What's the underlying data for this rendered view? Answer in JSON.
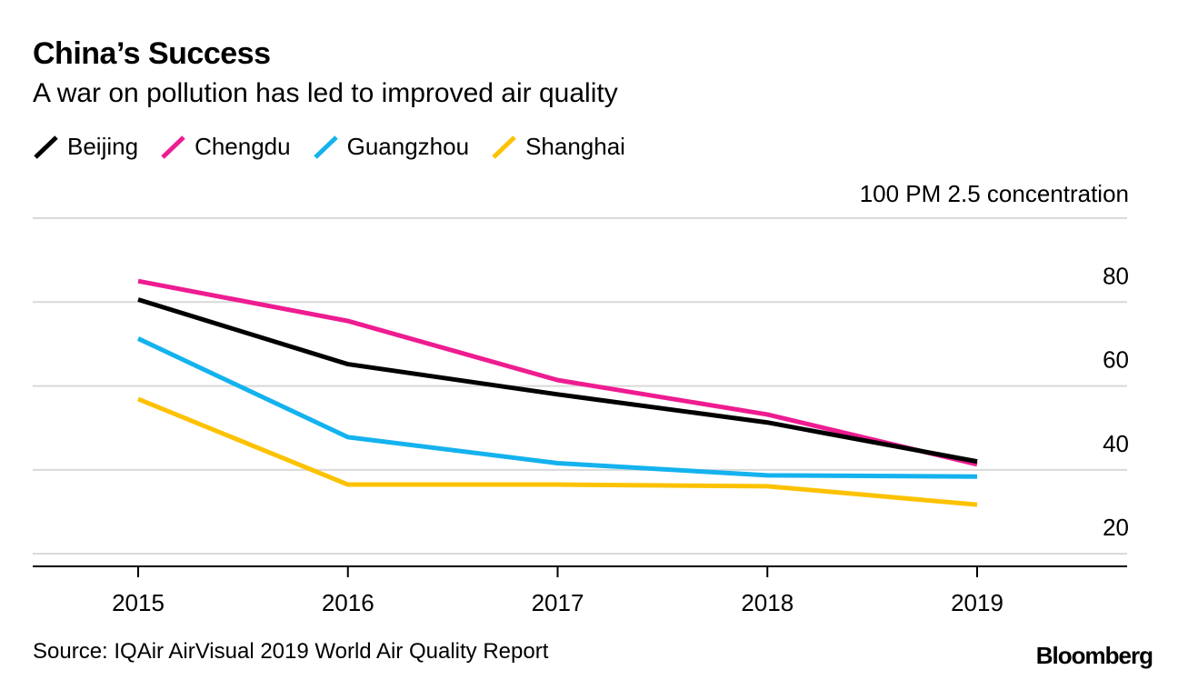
{
  "title": "China’s Success",
  "subtitle": "A war on pollution has led to improved air quality",
  "source": "Source: IQAir AirVisual 2019 World Air Quality Report",
  "brand": "Bloomberg",
  "chart_data": {
    "type": "line",
    "title": "China’s Success",
    "subtitle": "A war on pollution has led to improved air quality",
    "xlabel": "",
    "ylabel": "PM 2.5 concentration",
    "x": [
      "2015",
      "2016",
      "2017",
      "2018",
      "2019"
    ],
    "ylim": [
      17,
      100
    ],
    "yticks": [
      20,
      40,
      60,
      80
    ],
    "top_tick_label": "100 PM 2.5 concentration",
    "grid": true,
    "legend_position": "top-left",
    "series": [
      {
        "name": "Beijing",
        "color": "#000000",
        "values": [
          80.6,
          65.2,
          58.0,
          51.3,
          42.0
        ]
      },
      {
        "name": "Chengdu",
        "color": "#ee1c91",
        "values": [
          85.0,
          75.5,
          61.4,
          53.2,
          41.3
        ]
      },
      {
        "name": "Guangzhou",
        "color": "#14b2ee",
        "values": [
          71.3,
          47.8,
          41.6,
          38.7,
          38.4
        ]
      },
      {
        "name": "Shanghai",
        "color": "#fcc200",
        "values": [
          56.9,
          36.5,
          36.5,
          36.1,
          31.7
        ]
      }
    ]
  }
}
